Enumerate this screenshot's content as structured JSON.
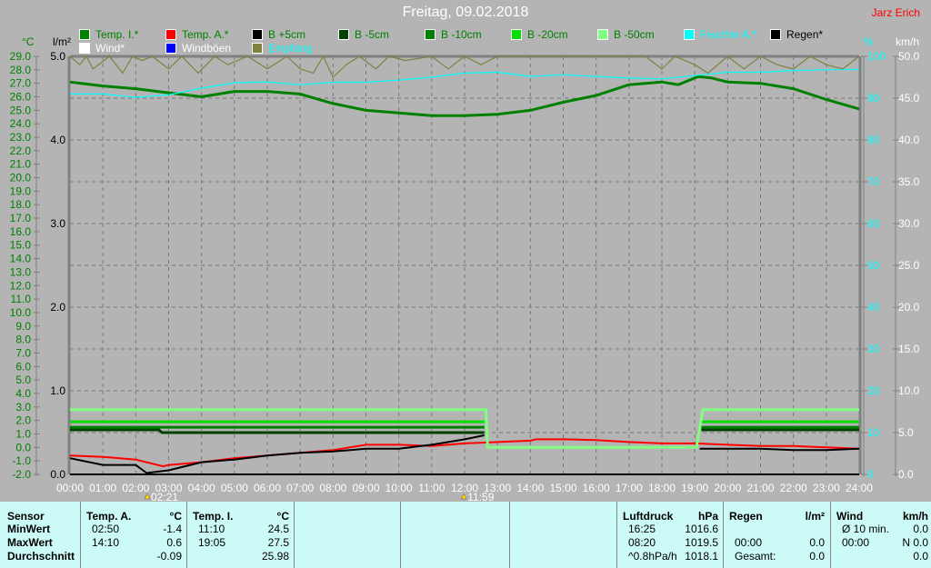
{
  "header": {
    "title": "Freitag, 09.02.2018",
    "author": "Jarz Erich"
  },
  "legend": [
    {
      "label": "Temp. I.*",
      "color": "#008000",
      "text_color": "#008000"
    },
    {
      "label": "Temp. A.*",
      "color": "#ff0000",
      "text_color": "#008000"
    },
    {
      "label": "B +5cm",
      "color": "#000000",
      "text_color": "#008000"
    },
    {
      "label": "B -5cm",
      "color": "#004000",
      "text_color": "#008000"
    },
    {
      "label": "B -10cm",
      "color": "#008000",
      "text_color": "#008000"
    },
    {
      "label": "B -20cm",
      "color": "#00e000",
      "text_color": "#008000"
    },
    {
      "label": "B -50cm",
      "color": "#80ff80",
      "text_color": "#008000"
    },
    {
      "label": "Feuchte A.*",
      "color": "#00ffff",
      "text_color": "#00ffff"
    },
    {
      "label": "Regen*",
      "color": "#000000",
      "text_color": "#000000"
    },
    {
      "label": "Wind*",
      "color": "#ffffff",
      "text_color": "#ffffff"
    },
    {
      "label": "Windböen",
      "color": "#0000ff",
      "text_color": "#ffffff"
    },
    {
      "label": "Empfang",
      "color": "#808040",
      "text_color": "#00ffff"
    }
  ],
  "chart_data": {
    "type": "line",
    "x_unit": "hour",
    "x_ticks": [
      "00:00",
      "01:00",
      "02:00",
      "03:00",
      "04:00",
      "05:00",
      "06:00",
      "07:00",
      "08:00",
      "09:00",
      "10:00",
      "11:00",
      "12:00",
      "13:00",
      "14:00",
      "15:00",
      "16:00",
      "17:00",
      "18:00",
      "19:00",
      "20:00",
      "21:00",
      "22:00",
      "23:00",
      "24:00"
    ],
    "axes": {
      "temp": {
        "label": "°C",
        "range": [
          -2,
          29
        ],
        "ticks": [
          "29.0",
          "28.0",
          "27.0",
          "26.0",
          "25.0",
          "24.0",
          "23.0",
          "22.0",
          "21.0",
          "20.0",
          "19.0",
          "18.0",
          "17.0",
          "16.0",
          "15.0",
          "14.0",
          "13.0",
          "12.0",
          "11.0",
          "10.0",
          "9.0",
          "8.0",
          "7.0",
          "6.0",
          "5.0",
          "4.0",
          "3.0",
          "2.0",
          "1.0",
          "0.0",
          "-1.0",
          "-2.0"
        ],
        "color": "#008000"
      },
      "rain": {
        "label": "l/m²",
        "range": [
          0,
          5
        ],
        "ticks": [
          "5.0",
          "4.0",
          "3.0",
          "2.0",
          "1.0",
          "0.0"
        ],
        "color": "#000000"
      },
      "humidity": {
        "label": "%",
        "range": [
          0,
          100
        ],
        "ticks": [
          "100",
          "90",
          "80",
          "70",
          "60",
          "50",
          "40",
          "30",
          "20",
          "10",
          "0"
        ],
        "color": "#00ffff"
      },
      "wind": {
        "label": "km/h",
        "range": [
          0,
          50
        ],
        "ticks": [
          "50.0",
          "45.0",
          "40.0",
          "35.0",
          "30.0",
          "25.0",
          "20.0",
          "15.0",
          "10.0",
          "5.0",
          "0.0"
        ],
        "color": "#ffffff"
      }
    },
    "grid": true,
    "series": [
      {
        "name": "Temp. I.*",
        "axis": "temp",
        "color": "#008000",
        "x": [
          0,
          1,
          2,
          3,
          4,
          5,
          6,
          7,
          8,
          9,
          10,
          11,
          12,
          13,
          14,
          15,
          16,
          17,
          18,
          18.5,
          19.1,
          19.5,
          20,
          21,
          22,
          23,
          24
        ],
        "y": [
          27.1,
          26.8,
          26.6,
          26.3,
          26.0,
          26.4,
          26.4,
          26.2,
          25.5,
          25.0,
          24.8,
          24.6,
          24.6,
          24.7,
          25.0,
          25.6,
          26.1,
          26.9,
          27.1,
          26.9,
          27.5,
          27.4,
          27.1,
          27.0,
          26.6,
          25.8,
          25.1
        ]
      },
      {
        "name": "Feuchte A.*",
        "axis": "humidity",
        "color": "#00ffff",
        "x": [
          0,
          1,
          2,
          3,
          4,
          5,
          6,
          7,
          8,
          9,
          10,
          11,
          12,
          13,
          14,
          15,
          16,
          17,
          18,
          19,
          20,
          21,
          22,
          23,
          24
        ],
        "y": [
          91,
          91,
          90.2,
          90.8,
          92.4,
          93.7,
          93.9,
          93.2,
          93.8,
          93.8,
          94.3,
          95,
          96,
          96.2,
          95.2,
          95.6,
          95.2,
          94.8,
          94.6,
          95.4,
          96.2,
          96.2,
          96.6,
          96.8,
          96.9
        ]
      },
      {
        "name": "Temp. A.*",
        "axis": "temp",
        "color": "#ff0000",
        "x": [
          0,
          1,
          2,
          2.83,
          3,
          4,
          5,
          6,
          7,
          8,
          9,
          10,
          11,
          12,
          13,
          14,
          14.17,
          15,
          16,
          17,
          18,
          19,
          20,
          21,
          22,
          23,
          24
        ],
        "y": [
          -0.6,
          -0.7,
          -0.9,
          -1.4,
          -1.3,
          -1.1,
          -0.8,
          -0.6,
          -0.4,
          -0.2,
          0.2,
          0.2,
          0.1,
          0.3,
          0.4,
          0.5,
          0.6,
          0.6,
          0.55,
          0.4,
          0.3,
          0.3,
          0.2,
          0.1,
          0.1,
          0.0,
          -0.1
        ]
      },
      {
        "name": "B +5cm",
        "axis": "temp",
        "color": "#000000",
        "x": [
          0,
          1,
          2,
          2.33,
          3,
          4,
          5,
          6,
          7,
          8,
          9,
          10,
          11,
          12,
          12.6,
          null,
          19.15,
          20,
          21,
          22,
          23,
          24
        ],
        "y": [
          -0.8,
          -1.3,
          -1.3,
          -1.9,
          -1.7,
          -1.1,
          -0.9,
          -0.6,
          -0.4,
          -0.3,
          -0.1,
          -0.1,
          0.2,
          0.6,
          0.9,
          null,
          -0.1,
          -0.1,
          -0.1,
          -0.2,
          -0.2,
          -0.1
        ]
      },
      {
        "name": "B -5cm",
        "axis": "temp",
        "color": "#004000",
        "x": [
          0,
          2.7,
          2.8,
          12.6,
          null,
          19.2,
          24
        ],
        "y": [
          1.3,
          1.3,
          1.1,
          1.1,
          null,
          1.3,
          1.3
        ]
      },
      {
        "name": "B -10cm",
        "axis": "temp",
        "color": "#008000",
        "x": [
          0,
          12.6,
          null,
          19.2,
          24
        ],
        "y": [
          1.5,
          1.5,
          null,
          1.5,
          1.5
        ]
      },
      {
        "name": "B -20cm",
        "axis": "temp",
        "color": "#00e000",
        "x": [
          0,
          12.6,
          null,
          19.2,
          24
        ],
        "y": [
          1.9,
          1.9,
          null,
          1.9,
          1.9
        ]
      },
      {
        "name": "B -50cm",
        "axis": "temp",
        "color": "#80ff80",
        "x": [
          0,
          12.65,
          12.7,
          19.05,
          19.25,
          24
        ],
        "y": [
          2.8,
          2.8,
          0.0,
          0.0,
          2.8,
          2.8
        ]
      },
      {
        "name": "Regen*",
        "axis": "rain",
        "color": "#000000",
        "x": [
          0,
          24
        ],
        "y": [
          0,
          0
        ]
      },
      {
        "name": "Empfang",
        "axis": "humidity",
        "color": "#808040",
        "x": [
          0,
          0.3,
          0.5,
          0.7,
          1.2,
          1.6,
          1.9,
          2.2,
          2.5,
          3.0,
          3.4,
          3.9,
          4.4,
          4.8,
          5.4,
          6.0,
          6.6,
          7.0,
          7.4,
          7.7,
          8.0,
          8.4,
          8.8,
          9.3,
          9.7,
          10.2,
          11,
          11.5,
          12,
          12.5,
          13,
          17.5,
          18,
          18.4,
          19,
          19.4,
          20,
          20.5,
          21,
          21.5,
          22,
          22.5,
          23,
          23.5,
          24
        ],
        "y": [
          100,
          98,
          100,
          97,
          100,
          96,
          100,
          99,
          100,
          97,
          100,
          96,
          100,
          98,
          100,
          97,
          100,
          97,
          96,
          100,
          95,
          98,
          100,
          97,
          100,
          99,
          100,
          97,
          100,
          98,
          100,
          100,
          97,
          100,
          98,
          96,
          100,
          97,
          100,
          98,
          97,
          100,
          98,
          97,
          100
        ]
      }
    ],
    "markers": [
      {
        "label": "02:21",
        "x": 2.35,
        "icon": "sunrise-icon"
      },
      {
        "label": "11:59",
        "x": 11.98,
        "icon": "sunset-icon"
      }
    ]
  },
  "table": {
    "sensor": {
      "header": "Sensor",
      "rows": [
        "MinWert",
        "MaxWert",
        "Durchschnitt"
      ]
    },
    "temp_a": {
      "header": "Temp. A.",
      "unit": "°C",
      "times": [
        "02:50",
        "14:10",
        ""
      ],
      "values": [
        "-1.4",
        "0.6",
        "-0.09"
      ]
    },
    "temp_i": {
      "header": "Temp. I.",
      "unit": "°C",
      "times": [
        "11:10",
        "19:05",
        ""
      ],
      "values": [
        "24.5",
        "27.5",
        "25.98"
      ]
    },
    "pressure": {
      "header": "Luftdruck",
      "unit": "hPa",
      "times": [
        "16:25",
        "08:20",
        "^0.8hPa/h"
      ],
      "values": [
        "1016.6",
        "1019.5",
        "1018.1"
      ]
    },
    "rain": {
      "header": "Regen",
      "unit": "l/m²",
      "times": [
        "",
        "00:00",
        "Gesamt:"
      ],
      "values": [
        "",
        "0.0",
        "0.0"
      ]
    },
    "wind": {
      "header": "Wind",
      "unit": "km/h",
      "times": [
        "Ø 10 min.",
        "00:00",
        ""
      ],
      "values": [
        "0.0",
        "N 0.0",
        "0.0"
      ]
    }
  }
}
